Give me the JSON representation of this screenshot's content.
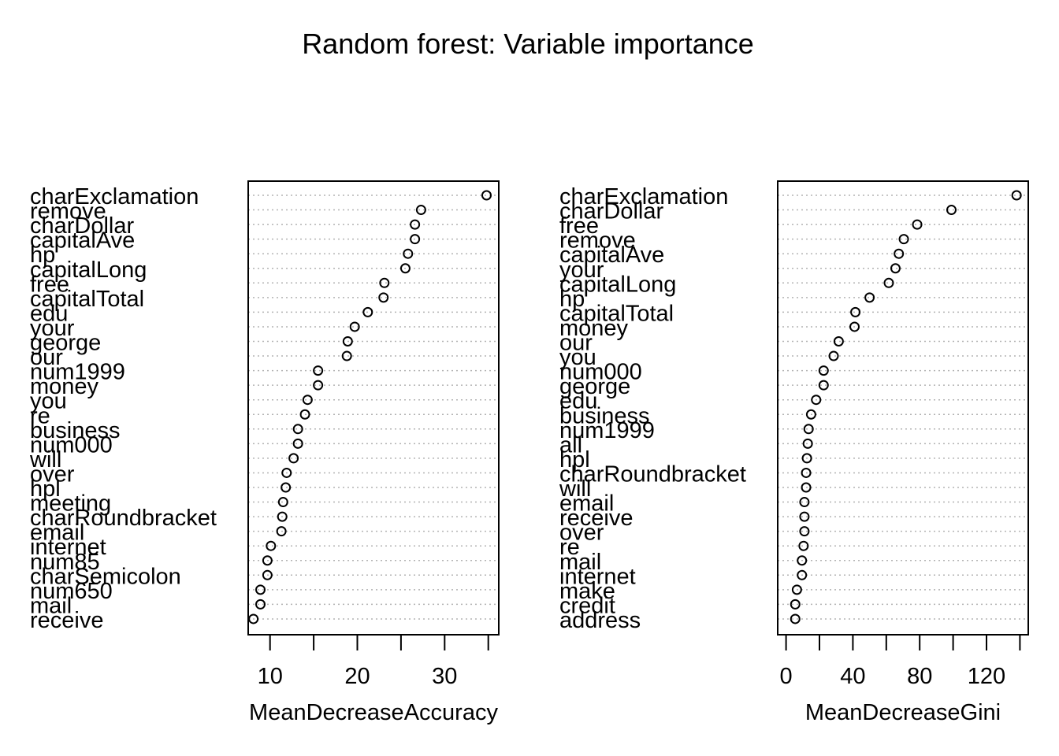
{
  "title": "Random forest: Variable importance",
  "chart_data": [
    {
      "type": "scatter",
      "style": "dotchart",
      "xlabel": "MeanDecreaseAccuracy",
      "xlim": [
        7.5,
        36.2
      ],
      "xticks": [
        10,
        20,
        30
      ],
      "xticks_unlabeled": [
        15,
        25,
        35
      ],
      "grid": "horizontal dotted lines per variable",
      "variables": [
        "charExclamation",
        "remove",
        "charDollar",
        "capitalAve",
        "hp",
        "capitalLong",
        "free",
        "capitalTotal",
        "edu",
        "your",
        "george",
        "our",
        "num1999",
        "money",
        "you",
        "re",
        "business",
        "num000",
        "will",
        "over",
        "hpl",
        "meeting",
        "charRoundbracket",
        "email",
        "internet",
        "num85",
        "charSemicolon",
        "num650",
        "mail",
        "receive"
      ],
      "values": [
        34.8,
        27.3,
        26.6,
        26.6,
        25.8,
        25.5,
        23.1,
        23.0,
        21.2,
        19.7,
        18.9,
        18.8,
        15.5,
        15.5,
        14.3,
        14.0,
        13.2,
        13.2,
        12.7,
        11.9,
        11.8,
        11.5,
        11.4,
        11.3,
        10.1,
        9.7,
        9.7,
        8.9,
        8.9,
        8.1
      ]
    },
    {
      "type": "scatter",
      "style": "dotchart",
      "xlabel": "MeanDecreaseGini",
      "xlim": [
        -5,
        145
      ],
      "xticks": [
        0,
        40,
        80,
        120
      ],
      "xticks_unlabeled": [
        20,
        60,
        100,
        140
      ],
      "grid": "horizontal dotted lines per variable",
      "variables": [
        "charExclamation",
        "charDollar",
        "free",
        "remove",
        "capitalAve",
        "your",
        "capitalLong",
        "hp",
        "capitalTotal",
        "money",
        "our",
        "you",
        "num000",
        "george",
        "edu",
        "business",
        "num1999",
        "all",
        "hpl",
        "charRoundbracket",
        "will",
        "email",
        "receive",
        "over",
        "re",
        "mail",
        "internet",
        "make",
        "credit",
        "address"
      ],
      "values": [
        138,
        99,
        78.5,
        70.5,
        67.5,
        65.5,
        61.5,
        50,
        41.5,
        41,
        31.5,
        28.5,
        22.5,
        22.5,
        18,
        15,
        13.5,
        13,
        12.5,
        12,
        12,
        11,
        11,
        11,
        10.5,
        9.5,
        9.5,
        6.5,
        5.5,
        5.5
      ]
    }
  ]
}
